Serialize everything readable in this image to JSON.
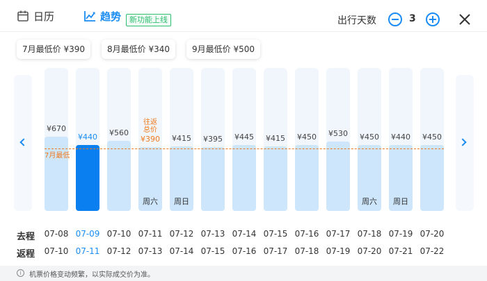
{
  "header": {
    "tabs": [
      {
        "label": "日历",
        "icon": "calendar-icon",
        "active": false
      },
      {
        "label": "趋势",
        "icon": "trend-chart-icon",
        "active": true
      }
    ],
    "new_badge": "新功能上线",
    "days_label": "出行天数",
    "days_value": "3",
    "accent_color": "#1a8cf3"
  },
  "monthly_lowest": [
    "7月最低价 ¥390",
    "8月最低价 ¥340",
    "9月最低价 ¥500"
  ],
  "low_line_label": "7月最低",
  "columns": [
    {
      "price": "¥670",
      "value": 670,
      "depart": "07-08",
      "return": "07-10",
      "weekday": "",
      "tag": [],
      "selected": false
    },
    {
      "price": "¥440",
      "value": 440,
      "depart": "07-09",
      "return": "07-11",
      "weekday": "",
      "tag": [],
      "selected": true
    },
    {
      "price": "¥560",
      "value": 560,
      "depart": "07-10",
      "return": "07-12",
      "weekday": "",
      "tag": [],
      "selected": false
    },
    {
      "price": "¥390",
      "value": 390,
      "depart": "07-11",
      "return": "07-13",
      "weekday": "周六",
      "tag": [
        "往返",
        "总价"
      ],
      "selected": false
    },
    {
      "price": "¥415",
      "value": 415,
      "depart": "07-12",
      "return": "07-14",
      "weekday": "周日",
      "tag": [],
      "selected": false
    },
    {
      "price": "¥395",
      "value": 395,
      "depart": "07-13",
      "return": "07-15",
      "weekday": "",
      "tag": [],
      "selected": false
    },
    {
      "price": "¥445",
      "value": 445,
      "depart": "07-14",
      "return": "07-16",
      "weekday": "",
      "tag": [],
      "selected": false
    },
    {
      "price": "¥415",
      "value": 415,
      "depart": "07-15",
      "return": "07-17",
      "weekday": "",
      "tag": [],
      "selected": false
    },
    {
      "price": "¥450",
      "value": 450,
      "depart": "07-16",
      "return": "07-18",
      "weekday": "",
      "tag": [],
      "selected": false
    },
    {
      "price": "¥530",
      "value": 530,
      "depart": "07-17",
      "return": "07-19",
      "weekday": "",
      "tag": [],
      "selected": false
    },
    {
      "price": "¥450",
      "value": 450,
      "depart": "07-18",
      "return": "07-20",
      "weekday": "周六",
      "tag": [],
      "selected": false
    },
    {
      "price": "¥440",
      "value": 440,
      "depart": "07-19",
      "return": "07-21",
      "weekday": "周日",
      "tag": [],
      "selected": false
    },
    {
      "price": "¥450",
      "value": 450,
      "depart": "07-20",
      "return": "07-22",
      "weekday": "",
      "tag": [],
      "selected": false
    }
  ],
  "rows": {
    "depart_label": "去程",
    "return_label": "返程"
  },
  "footer": {
    "icon": "info-icon",
    "text": "机票价格变动频繁，以实际成交价为准。"
  }
}
